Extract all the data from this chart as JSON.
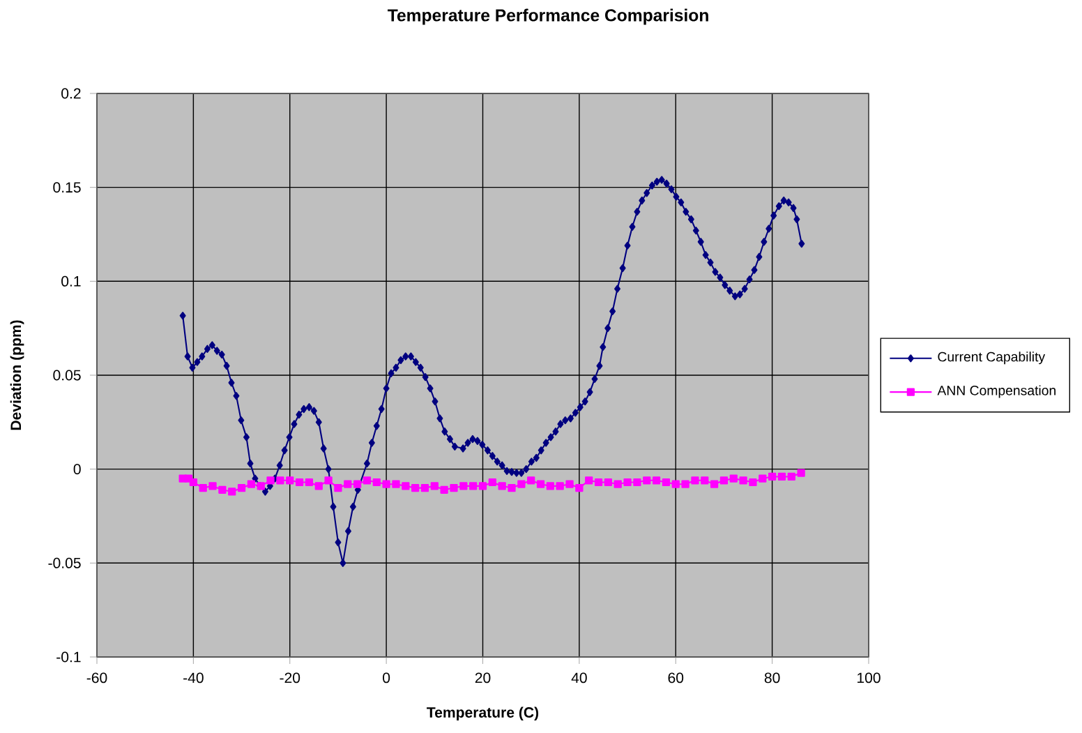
{
  "chart_data": {
    "type": "line",
    "title": "Temperature  Performance Comparision",
    "xlabel": "Temperature (C)",
    "ylabel": "Deviation (ppm)",
    "xlim": [
      -60,
      100
    ],
    "xticks": [
      -60,
      -40,
      -20,
      0,
      20,
      40,
      60,
      80,
      100
    ],
    "ylim": [
      -0.1,
      0.2
    ],
    "yticks": [
      -0.1,
      -0.05,
      0,
      0.05,
      0.1,
      0.15,
      0.2
    ],
    "grid": true,
    "legend": "right",
    "series": [
      {
        "name": "Current Capability",
        "color": "#000080",
        "marker": "diamond",
        "x": [
          -42.2,
          -41.2,
          -40.2,
          -39.2,
          -38.2,
          -37.1,
          -36.1,
          -35.1,
          -34.1,
          -33.1,
          -32.1,
          -31.1,
          -30.1,
          -29.0,
          -28.2,
          -27.2,
          -26.2,
          -25.1,
          -24.1,
          -23.1,
          -22.1,
          -21.1,
          -20.1,
          -19.1,
          -18.1,
          -17.1,
          -16.0,
          -15.0,
          -14.0,
          -13.0,
          -12.0,
          -11.0,
          -10.0,
          -9.0,
          -7.9,
          -6.9,
          -5.9,
          -4.0,
          -3.0,
          -2.0,
          -1.0,
          0,
          1.0,
          2.0,
          3.0,
          4.0,
          5.1,
          6.1,
          7.1,
          8.1,
          9.1,
          10.1,
          11.1,
          12.1,
          13.2,
          14.2,
          15.9,
          16.9,
          17.9,
          18.9,
          19.9,
          21.0,
          22.0,
          23.0,
          24.0,
          25.0,
          26.0,
          27.0,
          28.0,
          29.0,
          30.1,
          31.1,
          32.1,
          33.1,
          34.1,
          35.1,
          36.1,
          37.1,
          38.2,
          39.2,
          40.2,
          41.2,
          42.2,
          43.2,
          44.2,
          44.9,
          45.9,
          46.9,
          47.9,
          49.0,
          50.0,
          51.0,
          52.0,
          53.0,
          54.0,
          55.1,
          56.1,
          57.1,
          58.1,
          59.1,
          60.1,
          61.1,
          62.1,
          63.2,
          64.2,
          65.2,
          66.2,
          67.2,
          68.2,
          69.2,
          70.2,
          71.2,
          72.3,
          73.3,
          74.3,
          75.3,
          76.3,
          77.3,
          78.3,
          79.3,
          80.3,
          81.4,
          82.4,
          83.4,
          84.4,
          85.1,
          86.1
        ],
        "values": [
          0.0817,
          0.06,
          0.054,
          0.057,
          0.06,
          0.064,
          0.066,
          0.063,
          0.061,
          0.055,
          0.046,
          0.039,
          0.026,
          0.017,
          0.003,
          -0.005,
          -0.009,
          -0.012,
          -0.009,
          -0.005,
          0.002,
          0.01,
          0.017,
          0.024,
          0.029,
          0.032,
          0.033,
          0.031,
          0.025,
          0.011,
          0.0,
          -0.02,
          -0.039,
          -0.05,
          -0.033,
          -0.02,
          -0.011,
          0.003,
          0.014,
          0.023,
          0.032,
          0.043,
          0.051,
          0.054,
          0.058,
          0.06,
          0.06,
          0.057,
          0.054,
          0.049,
          0.043,
          0.036,
          0.027,
          0.02,
          0.016,
          0.012,
          0.011,
          0.014,
          0.016,
          0.015,
          0.013,
          0.01,
          0.007,
          0.004,
          0.002,
          -0.001,
          -0.0015,
          -0.002,
          -0.002,
          0.0,
          0.004,
          0.006,
          0.01,
          0.014,
          0.017,
          0.02,
          0.024,
          0.026,
          0.027,
          0.03,
          0.033,
          0.036,
          0.041,
          0.048,
          0.055,
          0.065,
          0.075,
          0.084,
          0.096,
          0.107,
          0.119,
          0.129,
          0.137,
          0.143,
          0.147,
          0.151,
          0.153,
          0.154,
          0.152,
          0.149,
          0.145,
          0.142,
          0.137,
          0.133,
          0.127,
          0.121,
          0.114,
          0.11,
          0.105,
          0.102,
          0.098,
          0.095,
          0.092,
          0.093,
          0.096,
          0.101,
          0.106,
          0.113,
          0.121,
          0.128,
          0.135,
          0.14,
          0.143,
          0.142,
          0.139,
          0.133,
          0.12
        ]
      },
      {
        "name": "ANN Compensation",
        "color": "#ff00ff",
        "marker": "square",
        "x": [
          -42.2,
          -41,
          -40,
          -38,
          -36,
          -34,
          -32,
          -30,
          -28,
          -26,
          -24,
          -22,
          -20,
          -18,
          -16,
          -14,
          -12,
          -10,
          -8,
          -6,
          -4,
          -2,
          0,
          2,
          4,
          6,
          8,
          10,
          12,
          14,
          16,
          18,
          20,
          22,
          24,
          26,
          28,
          30,
          32,
          34,
          36,
          38,
          40,
          42,
          44,
          46,
          48,
          50,
          52,
          54,
          56,
          58,
          60,
          62,
          64,
          66,
          68,
          70,
          72,
          74,
          76,
          78,
          80,
          82,
          84,
          86
        ],
        "values": [
          -0.005,
          -0.005,
          -0.007,
          -0.01,
          -0.009,
          -0.011,
          -0.012,
          -0.01,
          -0.008,
          -0.009,
          -0.006,
          -0.006,
          -0.006,
          -0.007,
          -0.007,
          -0.009,
          -0.006,
          -0.01,
          -0.008,
          -0.008,
          -0.006,
          -0.007,
          -0.008,
          -0.008,
          -0.009,
          -0.01,
          -0.01,
          -0.009,
          -0.011,
          -0.01,
          -0.009,
          -0.009,
          -0.009,
          -0.007,
          -0.009,
          -0.01,
          -0.008,
          -0.006,
          -0.008,
          -0.009,
          -0.009,
          -0.008,
          -0.01,
          -0.006,
          -0.007,
          -0.007,
          -0.008,
          -0.007,
          -0.007,
          -0.006,
          -0.006,
          -0.007,
          -0.008,
          -0.008,
          -0.006,
          -0.006,
          -0.008,
          -0.006,
          -0.005,
          -0.006,
          -0.007,
          -0.005,
          -0.004,
          -0.004,
          -0.004,
          -0.002
        ]
      }
    ]
  }
}
